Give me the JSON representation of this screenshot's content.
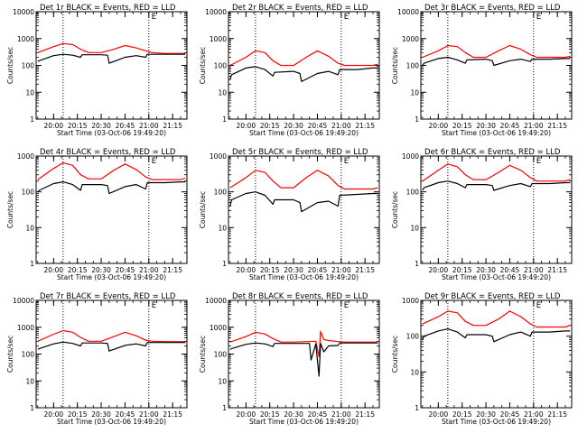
{
  "figure": {
    "background": "#ffffff",
    "colors": {
      "events": "#000000",
      "lld": "#ff0000",
      "axes": "#000000"
    }
  },
  "chart_data": [
    {
      "type": "line",
      "title": "Det 1r BLACK = Events, RED = LLD",
      "xlabel": "Start Time (03-Oct-06 19:49:20)",
      "ylabel": "Counts/sec",
      "yscale": "log",
      "ylim": [
        1,
        10000
      ],
      "yticks": [
        "1",
        "10",
        "100",
        "1000",
        "10000"
      ],
      "xlim": [
        "19:49",
        "21:24"
      ],
      "xticks": [
        "20:00",
        "20:15",
        "20:30",
        "20:45",
        "21:00",
        "21:15"
      ],
      "vlines": [
        "20:06",
        "21:00"
      ],
      "annotation": "E",
      "series": [
        {
          "name": "LLD",
          "color": "#ff0000",
          "x": [
            "19:50",
            "20:00",
            "20:06",
            "20:12",
            "20:17",
            "20:22",
            "20:30",
            "20:38",
            "20:45",
            "20:52",
            "20:58",
            "21:02",
            "21:10",
            "21:20",
            "21:23"
          ],
          "y": [
            300,
            500,
            650,
            600,
            400,
            300,
            300,
            400,
            550,
            450,
            350,
            300,
            280,
            280,
            280
          ]
        },
        {
          "name": "Events",
          "color": "#000000",
          "x": [
            "19:50",
            "19:51",
            "20:00",
            "20:06",
            "20:12",
            "20:17",
            "20:18",
            "20:30",
            "20:34",
            "20:35",
            "20:45",
            "20:52",
            "20:58",
            "20:59",
            "21:10",
            "21:20",
            "21:23"
          ],
          "y": [
            140,
            150,
            230,
            260,
            240,
            200,
            250,
            250,
            240,
            120,
            200,
            230,
            200,
            260,
            260,
            260,
            260
          ]
        }
      ]
    },
    {
      "type": "line",
      "title": "Det 2r BLACK = Events, RED = LLD",
      "xlabel": "Start Time (03-Oct-06 19:49:20)",
      "ylabel": "Counts/sec",
      "yscale": "log",
      "ylim": [
        1,
        10000
      ],
      "yticks": [
        "1",
        "10",
        "100",
        "1000",
        "10000"
      ],
      "xlim": [
        "19:49",
        "21:24"
      ],
      "xticks": [
        "20:00",
        "20:15",
        "20:30",
        "20:45",
        "21:00",
        "21:15"
      ],
      "vlines": [
        "20:06",
        "21:00"
      ],
      "annotation": "E",
      "series": [
        {
          "name": "LLD",
          "color": "#ff0000",
          "x": [
            "19:50",
            "20:00",
            "20:06",
            "20:12",
            "20:17",
            "20:22",
            "20:30",
            "20:38",
            "20:45",
            "20:52",
            "20:58",
            "21:02",
            "21:10",
            "21:20",
            "21:23"
          ],
          "y": [
            100,
            200,
            350,
            300,
            150,
            100,
            100,
            200,
            350,
            220,
            120,
            100,
            100,
            100,
            110
          ]
        },
        {
          "name": "Events",
          "color": "#000000",
          "x": [
            "19:50",
            "19:51",
            "20:00",
            "20:06",
            "20:12",
            "20:17",
            "20:18",
            "20:30",
            "20:34",
            "20:35",
            "20:45",
            "20:52",
            "20:58",
            "20:59",
            "21:10",
            "21:20",
            "21:23"
          ],
          "y": [
            30,
            45,
            80,
            90,
            70,
            40,
            55,
            60,
            50,
            25,
            50,
            60,
            45,
            70,
            70,
            80,
            80
          ]
        }
      ]
    },
    {
      "type": "line",
      "title": "Det 3r BLACK = Events, RED = LLD",
      "xlabel": "Start Time (03-Oct-06 19:49:20)",
      "ylabel": "Counts/sec",
      "yscale": "log",
      "ylim": [
        1,
        10000
      ],
      "yticks": [
        "1",
        "10",
        "100",
        "1000",
        "10000"
      ],
      "xlim": [
        "19:49",
        "21:24"
      ],
      "xticks": [
        "20:00",
        "20:15",
        "20:30",
        "20:45",
        "21:00",
        "21:15"
      ],
      "vlines": [
        "20:06",
        "21:00"
      ],
      "annotation": "E",
      "series": [
        {
          "name": "LLD",
          "color": "#ff0000",
          "x": [
            "19:50",
            "20:00",
            "20:06",
            "20:12",
            "20:17",
            "20:22",
            "20:30",
            "20:38",
            "20:45",
            "20:52",
            "20:58",
            "21:02",
            "21:10",
            "21:20",
            "21:23"
          ],
          "y": [
            200,
            350,
            550,
            500,
            300,
            200,
            200,
            350,
            550,
            400,
            250,
            200,
            200,
            200,
            220
          ]
        },
        {
          "name": "Events",
          "color": "#000000",
          "x": [
            "19:50",
            "19:51",
            "20:00",
            "20:06",
            "20:12",
            "20:17",
            "20:18",
            "20:30",
            "20:34",
            "20:35",
            "20:45",
            "20:52",
            "20:58",
            "20:59",
            "21:10",
            "21:20",
            "21:23"
          ],
          "y": [
            100,
            120,
            180,
            200,
            160,
            120,
            160,
            170,
            150,
            100,
            150,
            170,
            140,
            170,
            170,
            180,
            180
          ]
        }
      ]
    },
    {
      "type": "line",
      "title": "Det 4r BLACK = Events, RED = LLD",
      "xlabel": "Start Time (03-Oct-06 19:49:20)",
      "ylabel": "Counts/sec",
      "yscale": "log",
      "ylim": [
        1,
        1000
      ],
      "yticks": [
        "1",
        "10",
        "100",
        "1000"
      ],
      "xlim": [
        "19:49",
        "21:24"
      ],
      "xticks": [
        "20:00",
        "20:15",
        "20:30",
        "20:45",
        "21:00",
        "21:15"
      ],
      "vlines": [
        "20:06",
        "21:00"
      ],
      "annotation": "E",
      "series": [
        {
          "name": "LLD",
          "color": "#ff0000",
          "x": [
            "19:50",
            "20:00",
            "20:06",
            "20:12",
            "20:17",
            "20:22",
            "20:30",
            "20:38",
            "20:45",
            "20:52",
            "20:58",
            "21:02",
            "21:10",
            "21:20",
            "21:23"
          ],
          "y": [
            220,
            450,
            650,
            550,
            300,
            230,
            230,
            400,
            600,
            420,
            260,
            220,
            220,
            220,
            240
          ]
        },
        {
          "name": "Events",
          "color": "#000000",
          "x": [
            "19:50",
            "19:51",
            "20:00",
            "20:06",
            "20:12",
            "20:17",
            "20:18",
            "20:30",
            "20:34",
            "20:35",
            "20:45",
            "20:52",
            "20:58",
            "20:59",
            "21:10",
            "21:20",
            "21:23"
          ],
          "y": [
            100,
            110,
            170,
            190,
            160,
            110,
            160,
            160,
            150,
            90,
            140,
            160,
            120,
            180,
            180,
            190,
            190
          ]
        }
      ]
    },
    {
      "type": "line",
      "title": "Det 5r BLACK = Events, RED = LLD",
      "xlabel": "Start Time (03-Oct-06 19:49:20)",
      "ylabel": "Counts/sec",
      "yscale": "log",
      "ylim": [
        1,
        1000
      ],
      "yticks": [
        "1",
        "10",
        "100",
        "1000"
      ],
      "xlim": [
        "19:49",
        "21:24"
      ],
      "xticks": [
        "20:00",
        "20:15",
        "20:30",
        "20:45",
        "21:00",
        "21:15"
      ],
      "vlines": [
        "20:06",
        "21:00"
      ],
      "annotation": "E",
      "series": [
        {
          "name": "LLD",
          "color": "#ff0000",
          "x": [
            "19:50",
            "20:00",
            "20:06",
            "20:12",
            "20:17",
            "20:22",
            "20:30",
            "20:38",
            "20:45",
            "20:52",
            "20:58",
            "21:02",
            "21:10",
            "21:20",
            "21:23"
          ],
          "y": [
            130,
            250,
            400,
            350,
            200,
            130,
            130,
            250,
            400,
            280,
            150,
            120,
            120,
            120,
            130
          ]
        },
        {
          "name": "Events",
          "color": "#000000",
          "x": [
            "19:50",
            "19:51",
            "20:00",
            "20:06",
            "20:12",
            "20:17",
            "20:18",
            "20:30",
            "20:34",
            "20:35",
            "20:45",
            "20:52",
            "20:58",
            "20:59",
            "21:10",
            "21:20",
            "21:23"
          ],
          "y": [
            40,
            60,
            90,
            100,
            80,
            45,
            60,
            60,
            50,
            28,
            50,
            55,
            40,
            80,
            85,
            90,
            90
          ]
        }
      ]
    },
    {
      "type": "line",
      "title": "Det 6r BLACK = Events, RED = LLD",
      "xlabel": "Start Time (03-Oct-06 19:49:20)",
      "ylabel": "Counts/sec",
      "yscale": "log",
      "ylim": [
        1,
        1000
      ],
      "yticks": [
        "1",
        "10",
        "100",
        "1000"
      ],
      "xlim": [
        "19:49",
        "21:24"
      ],
      "xticks": [
        "20:00",
        "20:15",
        "20:30",
        "20:45",
        "21:00",
        "21:15"
      ],
      "vlines": [
        "20:06",
        "21:00"
      ],
      "annotation": "E",
      "series": [
        {
          "name": "LLD",
          "color": "#ff0000",
          "x": [
            "19:50",
            "20:00",
            "20:06",
            "20:12",
            "20:17",
            "20:22",
            "20:30",
            "20:38",
            "20:45",
            "20:52",
            "20:58",
            "21:02",
            "21:10",
            "21:20",
            "21:23"
          ],
          "y": [
            200,
            400,
            600,
            500,
            300,
            220,
            220,
            350,
            550,
            400,
            250,
            200,
            200,
            200,
            220
          ]
        },
        {
          "name": "Events",
          "color": "#000000",
          "x": [
            "19:50",
            "19:51",
            "20:00",
            "20:06",
            "20:12",
            "20:17",
            "20:18",
            "20:30",
            "20:34",
            "20:35",
            "20:45",
            "20:52",
            "20:58",
            "20:59",
            "21:10",
            "21:20",
            "21:23"
          ],
          "y": [
            110,
            130,
            180,
            200,
            170,
            130,
            160,
            160,
            150,
            110,
            150,
            170,
            140,
            170,
            170,
            180,
            180
          ]
        }
      ]
    },
    {
      "type": "line",
      "title": "Det 7r BLACK = Events, RED = LLD",
      "xlabel": "Start Time (03-Oct-06 19:49:20)",
      "ylabel": "Counts/sec",
      "yscale": "log",
      "ylim": [
        1,
        10000
      ],
      "yticks": [
        "1",
        "10",
        "100",
        "1000",
        "10000"
      ],
      "xlim": [
        "19:49",
        "21:24"
      ],
      "xticks": [
        "20:00",
        "20:15",
        "20:30",
        "20:45",
        "21:00",
        "21:15"
      ],
      "vlines": [
        "20:06",
        "21:00"
      ],
      "annotation": "E",
      "series": [
        {
          "name": "LLD",
          "color": "#ff0000",
          "x": [
            "19:50",
            "20:00",
            "20:06",
            "20:12",
            "20:17",
            "20:22",
            "20:30",
            "20:38",
            "20:45",
            "20:52",
            "20:58",
            "21:02",
            "21:10",
            "21:20",
            "21:23"
          ],
          "y": [
            300,
            550,
            750,
            650,
            420,
            300,
            300,
            450,
            650,
            480,
            330,
            300,
            290,
            290,
            290
          ]
        },
        {
          "name": "Events",
          "color": "#000000",
          "x": [
            "19:50",
            "19:51",
            "20:00",
            "20:06",
            "20:12",
            "20:17",
            "20:18",
            "20:30",
            "20:34",
            "20:35",
            "20:45",
            "20:52",
            "20:58",
            "20:59",
            "21:10",
            "21:20",
            "21:23"
          ],
          "y": [
            150,
            160,
            240,
            280,
            250,
            200,
            260,
            260,
            250,
            130,
            210,
            240,
            200,
            270,
            270,
            270,
            270
          ]
        }
      ]
    },
    {
      "type": "line",
      "title": "Det 8r BLACK = Events, RED = LLD",
      "xlabel": "Start Time (03-Oct-06 19:49:20)",
      "ylabel": "Counts/sec",
      "yscale": "log",
      "ylim": [
        1,
        10000
      ],
      "yticks": [
        "1",
        "10",
        "100",
        "1000",
        "10000"
      ],
      "xlim": [
        "19:49",
        "21:24"
      ],
      "xticks": [
        "20:00",
        "20:15",
        "20:30",
        "20:45",
        "21:00",
        "21:15"
      ],
      "vlines": [
        "20:06",
        "21:00"
      ],
      "annotation": "E",
      "series": [
        {
          "name": "LLD",
          "color": "#ff0000",
          "x": [
            "19:50",
            "20:00",
            "20:06",
            "20:12",
            "20:17",
            "20:22",
            "20:30",
            "20:38",
            "20:44",
            "20:46",
            "20:47",
            "20:49",
            "20:52",
            "20:58",
            "21:02",
            "21:10",
            "21:20",
            "21:23"
          ],
          "y": [
            280,
            450,
            650,
            560,
            380,
            280,
            280,
            290,
            300,
            80,
            700,
            350,
            320,
            290,
            280,
            280,
            280,
            280
          ]
        },
        {
          "name": "Events",
          "color": "#000000",
          "x": [
            "19:50",
            "19:51",
            "20:00",
            "20:06",
            "20:12",
            "20:17",
            "20:18",
            "20:30",
            "20:40",
            "20:41",
            "20:44",
            "20:46",
            "20:47",
            "20:49",
            "20:52",
            "20:58",
            "20:59",
            "21:10",
            "21:20",
            "21:23"
          ],
          "y": [
            150,
            160,
            230,
            260,
            240,
            190,
            250,
            250,
            250,
            60,
            240,
            15,
            250,
            120,
            200,
            210,
            260,
            260,
            260,
            260
          ]
        }
      ]
    },
    {
      "type": "line",
      "title": "Det 9r BLACK = Events, RED = LLD",
      "xlabel": "Start Time (03-Oct-06 19:49:20)",
      "ylabel": "Counts/sec",
      "yscale": "log",
      "ylim": [
        1,
        1000
      ],
      "yticks": [
        "1",
        "10",
        "100",
        "1000"
      ],
      "xlim": [
        "19:49",
        "21:24"
      ],
      "xticks": [
        "20:00",
        "20:15",
        "20:30",
        "20:45",
        "21:00",
        "21:15"
      ],
      "vlines": [
        "20:06",
        "21:00"
      ],
      "annotation": "E",
      "series": [
        {
          "name": "LLD",
          "color": "#ff0000",
          "x": [
            "19:50",
            "20:00",
            "20:06",
            "20:12",
            "20:17",
            "20:22",
            "20:30",
            "20:38",
            "20:45",
            "20:52",
            "20:58",
            "21:02",
            "21:10",
            "21:20",
            "21:23"
          ],
          "y": [
            220,
            350,
            500,
            450,
            260,
            200,
            200,
            300,
            500,
            350,
            220,
            180,
            180,
            180,
            200
          ]
        },
        {
          "name": "Events",
          "color": "#000000",
          "x": [
            "19:50",
            "19:51",
            "20:00",
            "20:06",
            "20:12",
            "20:17",
            "20:18",
            "20:30",
            "20:34",
            "20:35",
            "20:45",
            "20:52",
            "20:58",
            "20:59",
            "21:10",
            "21:20",
            "21:23"
          ],
          "y": [
            80,
            100,
            140,
            160,
            130,
            90,
            110,
            110,
            100,
            70,
            110,
            130,
            100,
            130,
            130,
            140,
            140
          ]
        }
      ]
    }
  ]
}
